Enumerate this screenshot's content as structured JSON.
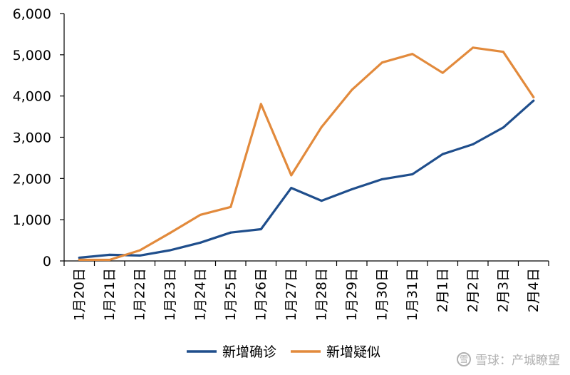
{
  "chart_data": {
    "type": "line",
    "categories": [
      "1月20日",
      "1月21日",
      "1月22日",
      "1月23日",
      "1月24日",
      "1月25日",
      "1月26日",
      "1月27日",
      "1月28日",
      "1月29日",
      "1月30日",
      "1月31日",
      "2月1日",
      "2月2日",
      "2月3日",
      "2月4日"
    ],
    "series": [
      {
        "name": "新增确诊",
        "color": "#1f4e8c",
        "values": [
          77,
          149,
          131,
          259,
          444,
          688,
          769,
          1771,
          1459,
          1737,
          1981,
          2102,
          2590,
          2829,
          3235,
          3887
        ]
      },
      {
        "name": "新增疑似",
        "color": "#e28a3c",
        "values": [
          27,
          26,
          257,
          680,
          1118,
          1309,
          3806,
          2077,
          3248,
          4148,
          4812,
          5019,
          4562,
          5173,
          5072,
          3971
        ]
      }
    ],
    "y_ticks": [
      "0",
      "1,000",
      "2,000",
      "3,000",
      "4,000",
      "5,000",
      "6,000"
    ],
    "ylim": [
      0,
      6000
    ],
    "legend_position": "bottom",
    "grid": false
  },
  "watermark": {
    "logo": "雪",
    "text": "雪球：产城瞭望"
  }
}
